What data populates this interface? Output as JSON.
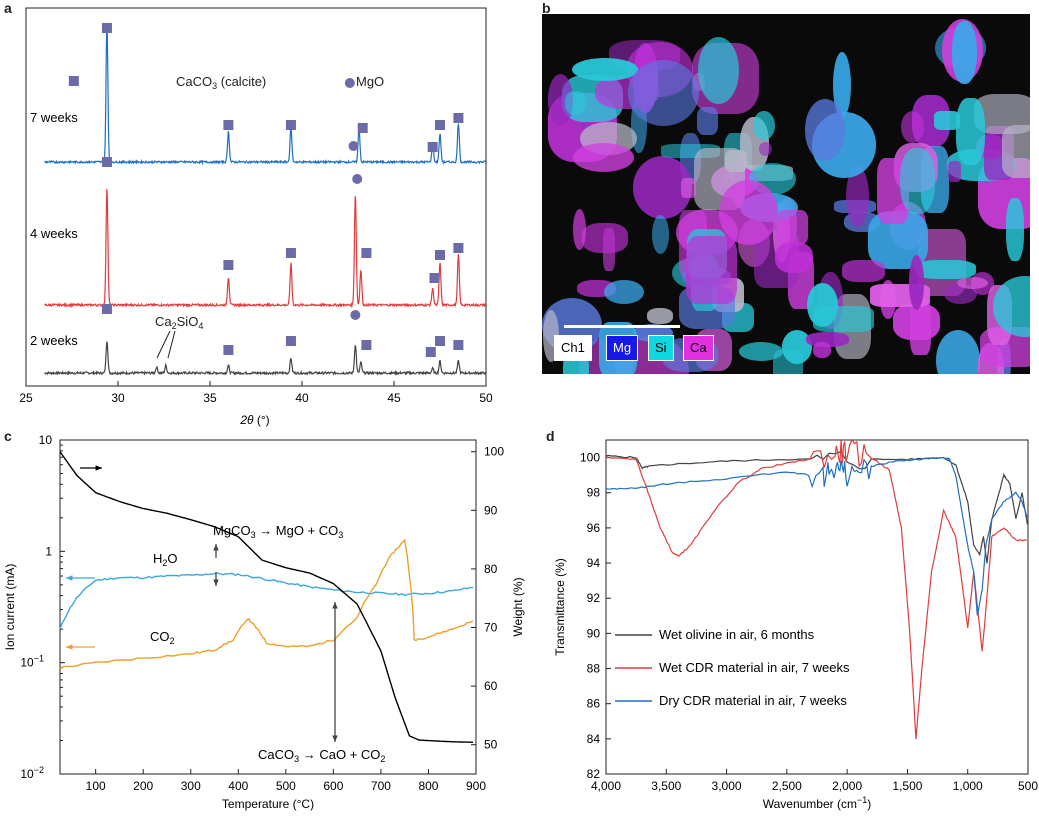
{
  "panels": {
    "a": {
      "label": "a"
    },
    "b": {
      "label": "b"
    },
    "c": {
      "label": "c"
    },
    "d": {
      "label": "d"
    }
  },
  "colors": {
    "blue": "#1f6fc4",
    "red": "#e03c3c",
    "gray": "#444444",
    "orange": "#f0a02a",
    "lightblue": "#3ba7e0",
    "marker": "#6b6ba8"
  },
  "chart_data": [
    {
      "type": "line",
      "panel": "a",
      "xlabel": "2θ (°)",
      "ylabel": "",
      "xlim": [
        25,
        50
      ],
      "xticks": [
        25,
        30,
        35,
        40,
        45,
        50
      ],
      "legend": {
        "calcite": "CaCO3 (calcite)",
        "mgo": "MgO"
      },
      "series": [
        {
          "name": "7 weeks",
          "color": "#1f6fc4",
          "offset": 2,
          "peaks": [
            [
              29.4,
              1.0
            ],
            [
              36.0,
              0.22
            ],
            [
              39.4,
              0.25
            ],
            [
              43.1,
              0.24
            ],
            [
              47.1,
              0.12
            ],
            [
              47.5,
              0.2
            ],
            [
              48.5,
              0.28
            ]
          ]
        },
        {
          "name": "4 weeks",
          "color": "#e03c3c",
          "offset": 1,
          "peaks": [
            [
              29.4,
              0.85
            ],
            [
              36.0,
              0.2
            ],
            [
              39.4,
              0.3
            ],
            [
              42.9,
              0.8
            ],
            [
              43.2,
              0.25
            ],
            [
              47.1,
              0.12
            ],
            [
              47.5,
              0.3
            ],
            [
              48.5,
              0.36
            ]
          ]
        },
        {
          "name": "2 weeks",
          "color": "#444444",
          "offset": 0,
          "peaks": [
            [
              29.4,
              0.22
            ],
            [
              32.1,
              0.04
            ],
            [
              32.6,
              0.05
            ],
            [
              36.0,
              0.05
            ],
            [
              39.4,
              0.1
            ],
            [
              42.9,
              0.19
            ],
            [
              43.2,
              0.07
            ],
            [
              47.1,
              0.03
            ],
            [
              47.5,
              0.08
            ],
            [
              48.5,
              0.08
            ]
          ]
        }
      ],
      "annotations": {
        "ca2sio4": "Ca2SiO4"
      }
    },
    {
      "type": "line",
      "panel": "c",
      "xlabel": "Temperature (°C)",
      "ylabel": "Ion current (mA)",
      "ylabel2": "Weight (%)",
      "xlim": [
        25,
        900
      ],
      "xticks": [
        100,
        200,
        300,
        400,
        500,
        600,
        700,
        800,
        900
      ],
      "ylim_log": [
        0.01,
        10
      ],
      "yticks_log": [
        "10",
        "1",
        "10−1",
        "10−2"
      ],
      "ylim2": [
        45,
        102
      ],
      "yticks2": [
        50,
        60,
        70,
        80,
        90,
        100
      ],
      "series": [
        {
          "name": "H2O",
          "color": "#3ba7e0",
          "x": [
            25,
            60,
            100,
            150,
            200,
            250,
            300,
            350,
            400,
            450,
            500,
            550,
            600,
            650,
            700,
            750,
            800,
            850,
            900
          ],
          "y": [
            0.2,
            0.38,
            0.55,
            0.58,
            0.58,
            0.6,
            0.61,
            0.63,
            0.62,
            0.57,
            0.52,
            0.48,
            0.45,
            0.43,
            0.42,
            0.41,
            0.42,
            0.44,
            0.48
          ]
        },
        {
          "name": "CO2",
          "color": "#f0a02a",
          "x": [
            25,
            100,
            200,
            300,
            350,
            390,
            420,
            440,
            460,
            500,
            550,
            600,
            650,
            690,
            720,
            750,
            760,
            770,
            800,
            850,
            900
          ],
          "y": [
            0.09,
            0.1,
            0.11,
            0.12,
            0.13,
            0.16,
            0.25,
            0.2,
            0.15,
            0.14,
            0.14,
            0.16,
            0.25,
            0.5,
            0.9,
            1.25,
            0.6,
            0.16,
            0.17,
            0.2,
            0.24
          ]
        },
        {
          "name": "Weight",
          "color": "#000000",
          "axis": "right",
          "x": [
            25,
            60,
            100,
            150,
            200,
            250,
            300,
            350,
            400,
            450,
            500,
            550,
            600,
            650,
            700,
            730,
            760,
            780,
            800,
            850,
            900
          ],
          "y": [
            100,
            96,
            93,
            91.5,
            90.3,
            89.5,
            88.4,
            87.2,
            85.5,
            81.5,
            80.2,
            79.3,
            77.5,
            74,
            66,
            58,
            51.5,
            50.8,
            50.7,
            50.5,
            50.4
          ]
        }
      ],
      "annotations": {
        "mgco3": "MgCO3 → MgO + CO3",
        "caco3": "CaCO3 → CaO + CO2"
      }
    },
    {
      "type": "line",
      "panel": "d",
      "xlabel": "Wavenumber (cm−1)",
      "ylabel": "Transmittance (%)",
      "xlim": [
        4000,
        500
      ],
      "xticks": [
        "4,000",
        "3,500",
        "3,000",
        "2,500",
        "2,000",
        "1,500",
        "1,000",
        "500"
      ],
      "ylim": [
        82,
        101
      ],
      "yticks": [
        82,
        84,
        86,
        88,
        90,
        92,
        94,
        96,
        98,
        100
      ],
      "legend_position": "lower-left",
      "series": [
        {
          "name": "Wet olivine in air, 6 months",
          "color": "#444444",
          "x": [
            4000,
            3750,
            3700,
            3650,
            3500,
            3000,
            2500,
            2000,
            1500,
            1200,
            1100,
            1000,
            950,
            900,
            870,
            840,
            800,
            700,
            650,
            600,
            550,
            500
          ],
          "y": [
            100.1,
            100.0,
            99.4,
            99.5,
            99.6,
            99.8,
            99.9,
            99.9,
            99.9,
            100.0,
            99.6,
            97.5,
            95.0,
            94.5,
            95.5,
            94.0,
            96.5,
            99.0,
            98.5,
            96.5,
            98.0,
            96.0
          ]
        },
        {
          "name": "Wet CDR material in air, 7 weeks",
          "color": "#e03c3c",
          "x": [
            4000,
            3750,
            3650,
            3550,
            3450,
            3400,
            3300,
            3100,
            2900,
            2700,
            2400,
            2100,
            2000,
            1800,
            1650,
            1550,
            1480,
            1430,
            1380,
            1300,
            1200,
            1100,
            1050,
            1000,
            950,
            880,
            860,
            800,
            700,
            600,
            500
          ],
          "y": [
            100.0,
            99.9,
            98.0,
            96.0,
            94.6,
            94.4,
            95.0,
            97.0,
            98.6,
            99.4,
            99.8,
            100.2,
            100.4,
            100.0,
            99.3,
            96.0,
            90.0,
            84.0,
            88.0,
            93.5,
            97.0,
            95.5,
            93.0,
            90.3,
            93.5,
            89.0,
            90.5,
            95.5,
            96.0,
            95.3,
            95.3
          ]
        },
        {
          "name": "Dry CDR material in air, 7 weeks",
          "color": "#1f6fc4",
          "x": [
            4000,
            3700,
            3500,
            3000,
            2500,
            2200,
            2100,
            2000,
            1800,
            1600,
            1400,
            1200,
            1150,
            1100,
            1050,
            1000,
            950,
            920,
            880,
            850,
            800,
            700,
            600,
            550,
            500
          ],
          "y": [
            98.2,
            98.3,
            98.5,
            98.8,
            99.2,
            98.9,
            99.5,
            99.0,
            99.5,
            99.8,
            99.9,
            100.0,
            99.9,
            99.0,
            97.0,
            95.0,
            93.5,
            91.0,
            92.5,
            95.0,
            96.5,
            97.5,
            98.0,
            97.5,
            96.5
          ]
        }
      ]
    }
  ]
}
